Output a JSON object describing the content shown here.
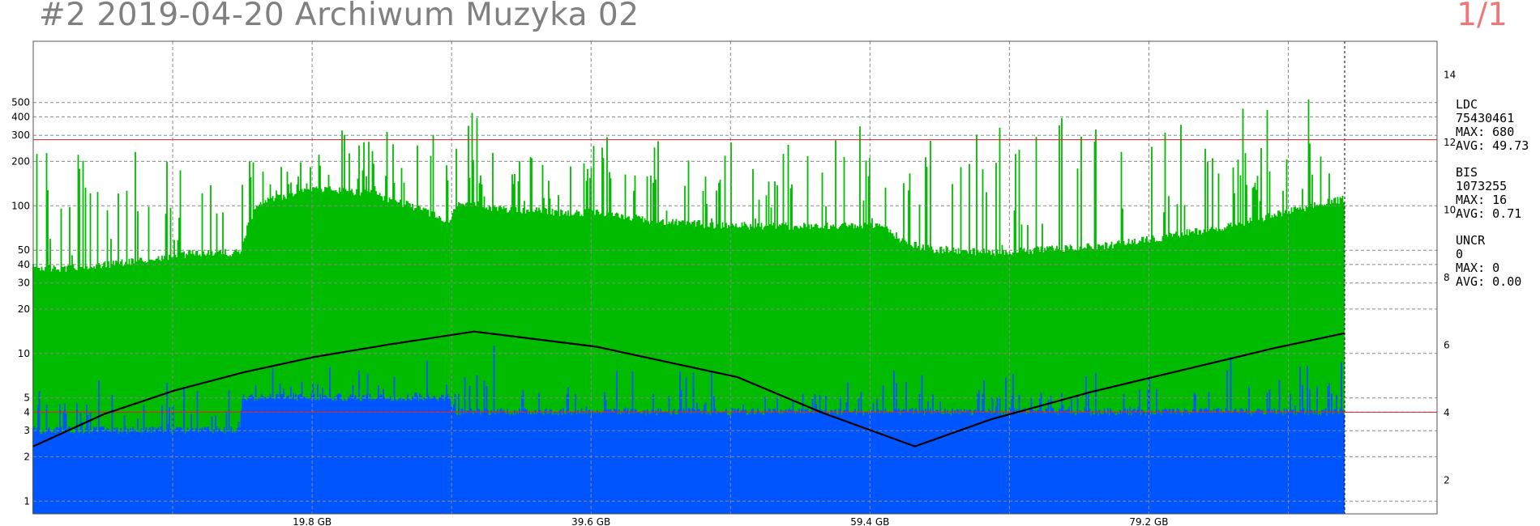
{
  "header": {
    "title": "#2 2019-04-20 Archiwum Muzyka 02",
    "page_indicator": "1/1"
  },
  "stats": [
    {
      "name": "LDC",
      "total": "75430461",
      "max": "MAX: 680",
      "avg": "AVG: 49.73"
    },
    {
      "name": "BIS",
      "total": "1073255",
      "max": "MAX: 16",
      "avg": "AVG: 0.71"
    },
    {
      "name": "UNCR",
      "total": "0",
      "max": "MAX: 0",
      "avg": "AVG: 0.00"
    }
  ],
  "colors": {
    "ldc": "#00bb00",
    "bis": "#0055ff",
    "speed": "#000000",
    "threshold": "#dd2222",
    "grid": "#888888",
    "title": "#808080",
    "pager": "#ee7777"
  },
  "chart_data": {
    "type": "area",
    "x_unit": "GB",
    "x_range": [
      0,
      93.1
    ],
    "x_grid_step_gb": 9.9,
    "x_ticks": [
      {
        "value": 19.8,
        "label": "19.8 GB"
      },
      {
        "value": 39.6,
        "label": "39.6 GB"
      },
      {
        "value": 59.4,
        "label": "59.4 GB"
      },
      {
        "value": 79.2,
        "label": "79.2 GB"
      }
    ],
    "y_left": {
      "scale": "log",
      "range": [
        0.82,
        1300
      ],
      "ticks": [
        1,
        2,
        3,
        4,
        5,
        10,
        20,
        30,
        40,
        50,
        100,
        200,
        300,
        400,
        500
      ]
    },
    "y_right": {
      "scale": "linear",
      "range": [
        1,
        15
      ],
      "ticks": [
        2,
        4,
        6,
        8,
        10,
        12,
        14
      ]
    },
    "thresholds": [
      {
        "axis": "left",
        "value": 280
      },
      {
        "axis": "left",
        "value": 4
      }
    ],
    "series": [
      {
        "name": "LDC",
        "axis": "left",
        "x": [
          0,
          2,
          4,
          8,
          11,
          14.7,
          16,
          20,
          24,
          28,
          29.5,
          30.2,
          31,
          33,
          37,
          38.5,
          39.6,
          42,
          44,
          48,
          52,
          56,
          60.1,
          62,
          64,
          68,
          72,
          76,
          80,
          84,
          87,
          89,
          91,
          93.1
        ],
        "baseline": [
          38,
          37,
          38,
          43,
          47,
          48,
          105,
          130,
          120,
          90,
          75,
          105,
          102,
          95,
          90,
          88,
          90,
          85,
          78,
          74,
          72,
          72,
          73,
          55,
          50,
          48,
          50,
          53,
          60,
          70,
          80,
          90,
          100,
          110
        ],
        "peak_typical": [
          300,
          250,
          280,
          250,
          220,
          200,
          300,
          300,
          300,
          300,
          350,
          480,
          470,
          350,
          300,
          350,
          300,
          280,
          260,
          250,
          250,
          300,
          350,
          380,
          380,
          380,
          400,
          400,
          400,
          400,
          450,
          480,
          480,
          500
        ],
        "peak_max": 680
      },
      {
        "name": "BIS",
        "axis": "left",
        "x": [
          0,
          14.7,
          14.8,
          29.5,
          30,
          39,
          39.6,
          50,
          60.1,
          70,
          80,
          85,
          93.1
        ],
        "baseline": [
          3,
          3,
          5,
          5,
          4,
          4,
          4,
          4,
          4,
          4,
          4,
          4,
          4
        ],
        "peak_typical": [
          7,
          6,
          8,
          9,
          12,
          8,
          7,
          7,
          7,
          7,
          8,
          9,
          10
        ],
        "peak_max": 16
      },
      {
        "name": "Speed",
        "axis": "right",
        "x": [
          0,
          5,
          10,
          15,
          20,
          25,
          31.3,
          40,
          50,
          56,
          62.6,
          68,
          75,
          82,
          88,
          93.1
        ],
        "y": [
          3.0,
          3.95,
          4.65,
          5.2,
          5.65,
          6.0,
          6.4,
          5.95,
          5.05,
          4.0,
          3.0,
          3.8,
          4.6,
          5.3,
          5.9,
          6.35
        ]
      }
    ]
  }
}
